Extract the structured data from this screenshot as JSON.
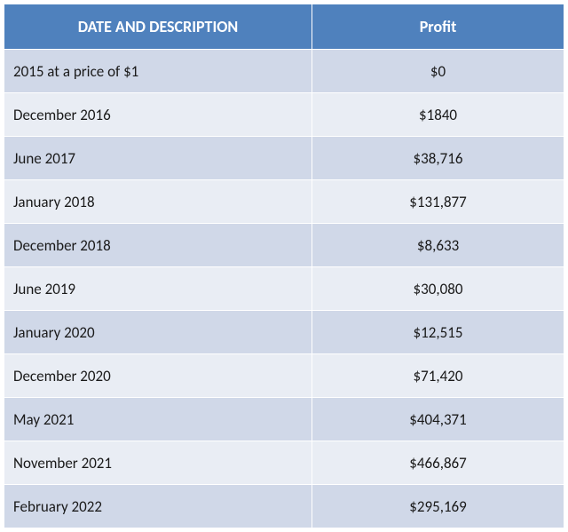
{
  "table": {
    "type": "table",
    "columns": [
      "DATE AND DESCRIPTION",
      "Profit"
    ],
    "header_bg": "#4f81bd",
    "header_text_color": "#ffffff",
    "row_bg_odd": "#d0d8e8",
    "row_bg_even": "#e9edf4",
    "cell_text_color": "#1a1a1a",
    "border_color": "#ffffff",
    "rows": [
      [
        "2015 at a price of $1",
        "$0"
      ],
      [
        "December 2016",
        "$1840"
      ],
      [
        "June 2017",
        "$38,716"
      ],
      [
        "January 2018",
        "$131,877"
      ],
      [
        "December 2018",
        "$8,633"
      ],
      [
        "June 2019",
        "$30,080"
      ],
      [
        "January 2020",
        "$12,515"
      ],
      [
        "December 2020",
        "$71,420"
      ],
      [
        "May 2021",
        "$404,371"
      ],
      [
        "November 2021",
        "$466,867"
      ],
      [
        "February 2022",
        "$295,169"
      ]
    ]
  }
}
